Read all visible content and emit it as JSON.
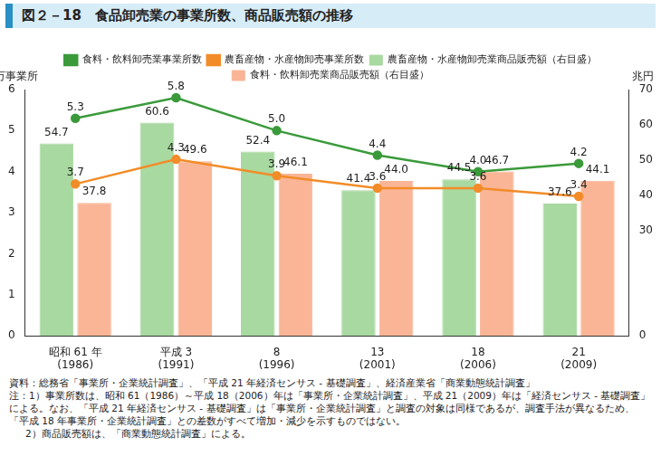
{
  "chart_data": {
    "type": "bar",
    "title": "図２－18　食品卸売業の事業所数、商品販売額の推移",
    "y_label": "万事業所",
    "y2_label": "兆円",
    "categories": [
      [
        "昭和 61 年",
        "(1986)"
      ],
      [
        "平成 3",
        "(1991)"
      ],
      [
        "8",
        "(1996)"
      ],
      [
        "13",
        "(2001)"
      ],
      [
        "18",
        "(2006)"
      ],
      [
        "21",
        "(2009)"
      ]
    ],
    "series": [
      {
        "name": "食料・飲料卸売業事業所数",
        "type": "line",
        "marker": "circle",
        "color": "#3a9a3a",
        "values": [
          5.3,
          5.8,
          5.0,
          4.4,
          4.0,
          4.2
        ],
        "value_labels": [
          "5.3",
          "5.8",
          "5.0",
          "4.4",
          "4.0",
          "4.2"
        ]
      },
      {
        "name": "農畜産物・水産物卸売事業所数",
        "type": "line",
        "marker": "circle",
        "color": "#f28c28",
        "values": [
          3.7,
          4.3,
          3.9,
          3.6,
          3.6,
          3.4
        ],
        "value_labels": [
          "3.7",
          "4.3",
          "3.9",
          "3.6",
          "3.6",
          "3.4"
        ]
      },
      {
        "name": "農畜産物・水産物卸売業商品販売額（右目盛）",
        "type": "bar",
        "axis": "y2",
        "color": "#a8d9a0",
        "values": [
          54.7,
          60.6,
          52.4,
          41.4,
          44.5,
          37.6
        ],
        "value_labels": [
          "54.7",
          "60.6",
          "52.4",
          "41.4",
          "44.5",
          "37.6"
        ]
      },
      {
        "name": "食料・飲料卸売業商品販売額（右目盛）",
        "type": "bar",
        "axis": "y2",
        "color": "#f9b596",
        "values": [
          37.8,
          49.6,
          46.1,
          44.0,
          46.7,
          44.1
        ],
        "value_labels": [
          "37.8",
          "49.6",
          "46.1",
          "44.0",
          "46.7",
          "44.1"
        ]
      }
    ],
    "ylim": [
      0,
      6
    ],
    "yticks": [
      0,
      1,
      2,
      3,
      4,
      5,
      6
    ],
    "y2lim": [
      0,
      70
    ],
    "y2ticks": [
      0,
      30,
      40,
      50,
      60,
      70
    ],
    "grid": false,
    "legend": "top",
    "data_labels": true,
    "source": "資料：総務省「事業所・企業統計調査」、「平成 21 年経済センサス - 基礎調査」、経済産業省「商業動態統計調査」",
    "notes": [
      "注：1）事業所数は、昭和 61（1986）～平成 18（2006）年は「事業所・企業統計調査」、平成 21（2009）年は「経済センサス - 基礎調査」による。なお、「平成 21 年経済センサス - 基礎調査」は「事業所・企業統計調査」と調査の対象は同様であるが、調査手法が異なるため、「平成 18 年事業所・企業統計調査」との差数がすべて増加・減少を示すものではない。",
      "2）商品販売額は、「商業動態統計調査」による。"
    ]
  }
}
